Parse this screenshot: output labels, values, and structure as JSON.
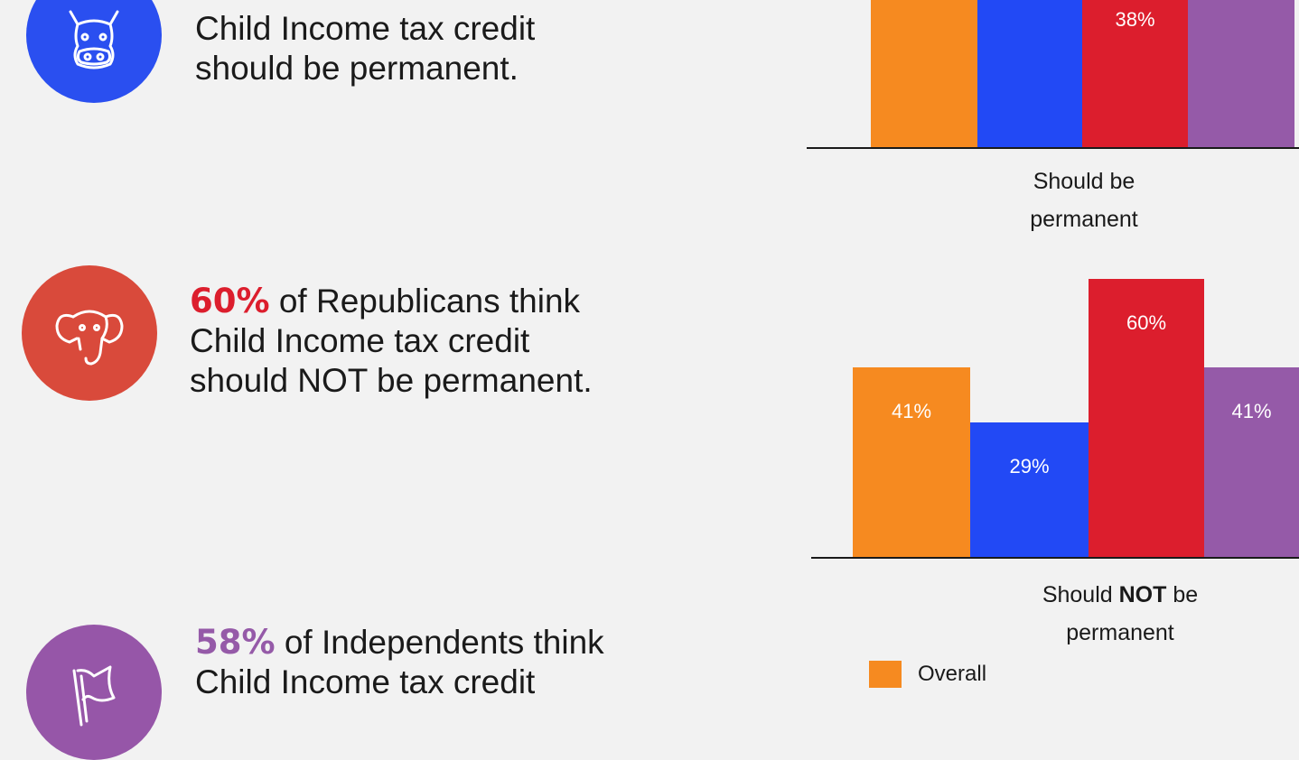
{
  "colors": {
    "overall": "#f68a20",
    "democrats": "#2249f5",
    "republicans": "#dc1e2d",
    "independents": "#955aa8",
    "dem_icon_bg": "#2a4ff0",
    "rep_icon_bg": "#d94a3b",
    "ind_icon_bg": "#9656a8",
    "rep_highlight": "#dc1e2d",
    "ind_highlight": "#955aa8"
  },
  "statements": {
    "democrats": {
      "icon": "donkey-icon",
      "line2": "Child Income tax credit",
      "line3": "should be permanent."
    },
    "republicans": {
      "icon": "elephant-icon",
      "pct": "60%",
      "line1_rest": " of Republicans think",
      "line2": "Child Income tax credit",
      "line3": "should NOT be permanent."
    },
    "independents": {
      "icon": "flag-icon",
      "pct": "58%",
      "line1_rest": " of Independents think",
      "line2": "Child Income tax credit"
    }
  },
  "chart_data": [
    {
      "type": "bar",
      "category_line1": "Should be",
      "category_line2": "permanent",
      "series": [
        {
          "name": "Overall",
          "value": null,
          "label": ""
        },
        {
          "name": "",
          "value": null,
          "label": ""
        },
        {
          "name": "",
          "value": 38,
          "label": "38%"
        },
        {
          "name": "",
          "value": null,
          "label": ""
        }
      ]
    },
    {
      "type": "bar",
      "category_line1_pre": "Should ",
      "category_line1_bold": "NOT",
      "category_line1_post": " be",
      "category_line2": "permanent",
      "ylim": [
        0,
        60
      ],
      "series": [
        {
          "name": "Overall",
          "value": 41,
          "label": "41%"
        },
        {
          "name": "",
          "value": 29,
          "label": "29%"
        },
        {
          "name": "",
          "value": 60,
          "label": "60%"
        },
        {
          "name": "",
          "value": 41,
          "label": "41%"
        }
      ]
    }
  ],
  "legend": [
    {
      "label": "Overall"
    }
  ]
}
